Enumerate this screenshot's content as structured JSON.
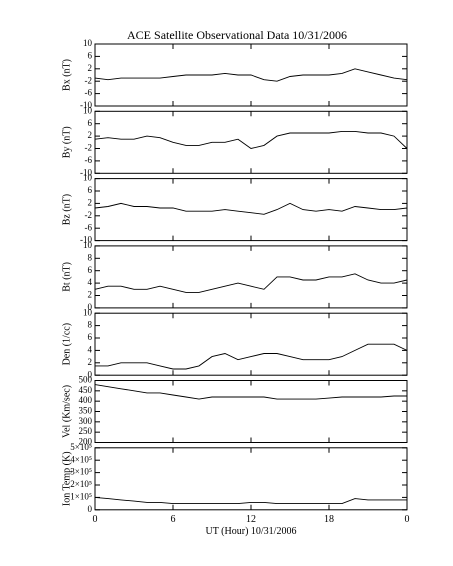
{
  "chart_data": [
    {
      "type": "line",
      "title": "ACE Satellite Observational Data   10/31/2006",
      "ylabel": "Bx (nT)",
      "x": [
        0,
        1,
        2,
        3,
        4,
        5,
        6,
        7,
        8,
        9,
        10,
        11,
        12,
        13,
        14,
        15,
        16,
        17,
        18,
        19,
        20,
        21,
        22,
        23,
        24
      ],
      "values": [
        -1,
        -1.5,
        -1,
        -1,
        -1,
        -1,
        -0.5,
        0,
        0,
        0,
        0.5,
        0,
        0,
        -1.5,
        -2,
        -0.5,
        0,
        0,
        0,
        0.5,
        2,
        1,
        0,
        -1,
        -1.5
      ],
      "color": "#000000",
      "ylim": [
        -10,
        10
      ],
      "yticks": [
        -10,
        -6,
        -2,
        2,
        6,
        10
      ]
    },
    {
      "type": "line",
      "ylabel": "By (nT)",
      "x": [
        0,
        1,
        2,
        3,
        4,
        5,
        6,
        7,
        8,
        9,
        10,
        11,
        12,
        13,
        14,
        15,
        16,
        17,
        18,
        19,
        20,
        21,
        22,
        23,
        24
      ],
      "values": [
        1,
        1.5,
        1,
        1,
        2,
        1.5,
        0,
        -1,
        -1,
        0,
        0,
        1,
        -2,
        -1,
        2,
        3,
        3,
        3,
        3,
        3.5,
        3.5,
        3,
        3,
        2,
        -2
      ],
      "color": "#000000",
      "ylim": [
        -10,
        10
      ],
      "yticks": [
        -10,
        -6,
        -2,
        2,
        6,
        10
      ]
    },
    {
      "type": "line",
      "ylabel": "Bz (nT)",
      "x": [
        0,
        1,
        2,
        3,
        4,
        5,
        6,
        7,
        8,
        9,
        10,
        11,
        12,
        13,
        14,
        15,
        16,
        17,
        18,
        19,
        20,
        21,
        22,
        23,
        24
      ],
      "values": [
        0.5,
        1,
        2,
        1,
        1,
        0.5,
        0.5,
        -0.5,
        -0.5,
        -0.5,
        0,
        -0.5,
        -1,
        -1.5,
        0,
        2,
        0,
        -0.5,
        0,
        -0.5,
        1,
        0.5,
        0,
        0,
        0.5
      ],
      "color": "#000000",
      "ylim": [
        -10,
        10
      ],
      "yticks": [
        -10,
        -6,
        -2,
        2,
        6,
        10
      ]
    },
    {
      "type": "line",
      "ylabel": "Bt (nT)",
      "x": [
        0,
        1,
        2,
        3,
        4,
        5,
        6,
        7,
        8,
        9,
        10,
        11,
        12,
        13,
        14,
        15,
        16,
        17,
        18,
        19,
        20,
        21,
        22,
        23,
        24
      ],
      "values": [
        3,
        3.5,
        3.5,
        3,
        3,
        3.5,
        3,
        2.5,
        2.5,
        3,
        3.5,
        4,
        3.5,
        3,
        5,
        5,
        4.5,
        4.5,
        5,
        5,
        5.5,
        4.5,
        4,
        4,
        4.5
      ],
      "color": "#000000",
      "ylim": [
        0,
        10
      ],
      "yticks": [
        0,
        2,
        4,
        6,
        8,
        10
      ]
    },
    {
      "type": "line",
      "ylabel": "Den (1/cc)",
      "x": [
        0,
        1,
        2,
        3,
        4,
        5,
        6,
        7,
        8,
        9,
        10,
        11,
        12,
        13,
        14,
        15,
        16,
        17,
        18,
        19,
        20,
        21,
        22,
        23,
        24
      ],
      "values": [
        1.5,
        1.5,
        2,
        2,
        2,
        1.5,
        1,
        1,
        1.5,
        3,
        3.5,
        2.5,
        3,
        3.5,
        3.5,
        3,
        2.5,
        2.5,
        2.5,
        3,
        4,
        5,
        5,
        5,
        4
      ],
      "color": "#000000",
      "ylim": [
        0,
        10
      ],
      "yticks": [
        0,
        2,
        4,
        6,
        8,
        10
      ]
    },
    {
      "type": "line",
      "ylabel": "Vel (Km/sec)",
      "x": [
        0,
        1,
        2,
        3,
        4,
        5,
        6,
        7,
        8,
        9,
        10,
        11,
        12,
        13,
        14,
        15,
        16,
        17,
        18,
        19,
        20,
        21,
        22,
        23,
        24
      ],
      "values": [
        480,
        470,
        460,
        450,
        440,
        440,
        430,
        420,
        410,
        420,
        420,
        420,
        420,
        420,
        410,
        410,
        410,
        410,
        415,
        420,
        420,
        420,
        420,
        425,
        425
      ],
      "color": "#000000",
      "ylim": [
        200,
        500
      ],
      "yticks": [
        200,
        250,
        300,
        350,
        400,
        450,
        500
      ]
    },
    {
      "type": "line",
      "ylabel": "Ion Temp (K)",
      "xlabel": "UT (Hour)   10/31/2006",
      "x": [
        0,
        1,
        2,
        3,
        4,
        5,
        6,
        7,
        8,
        9,
        10,
        11,
        12,
        13,
        14,
        15,
        16,
        17,
        18,
        19,
        20,
        21,
        22,
        23,
        24
      ],
      "values": [
        100000,
        90000,
        80000,
        70000,
        60000,
        60000,
        50000,
        50000,
        50000,
        50000,
        50000,
        50000,
        60000,
        60000,
        50000,
        50000,
        50000,
        50000,
        50000,
        50000,
        90000,
        80000,
        80000,
        80000,
        80000
      ],
      "color": "#000000",
      "ylim": [
        0,
        500000
      ],
      "yticks": [
        0,
        {
          "value": 100000,
          "label": "1×10⁵"
        },
        {
          "value": 200000,
          "label": "2×10⁵"
        },
        {
          "value": 300000,
          "label": "3×10⁵"
        },
        {
          "value": 400000,
          "label": "4×10⁵"
        },
        {
          "value": 500000,
          "label": "5×10⁵"
        }
      ],
      "xlim": [
        0,
        24
      ],
      "xticks": [
        0,
        6,
        12,
        18,
        {
          "value": 24,
          "label": "0"
        }
      ]
    }
  ]
}
